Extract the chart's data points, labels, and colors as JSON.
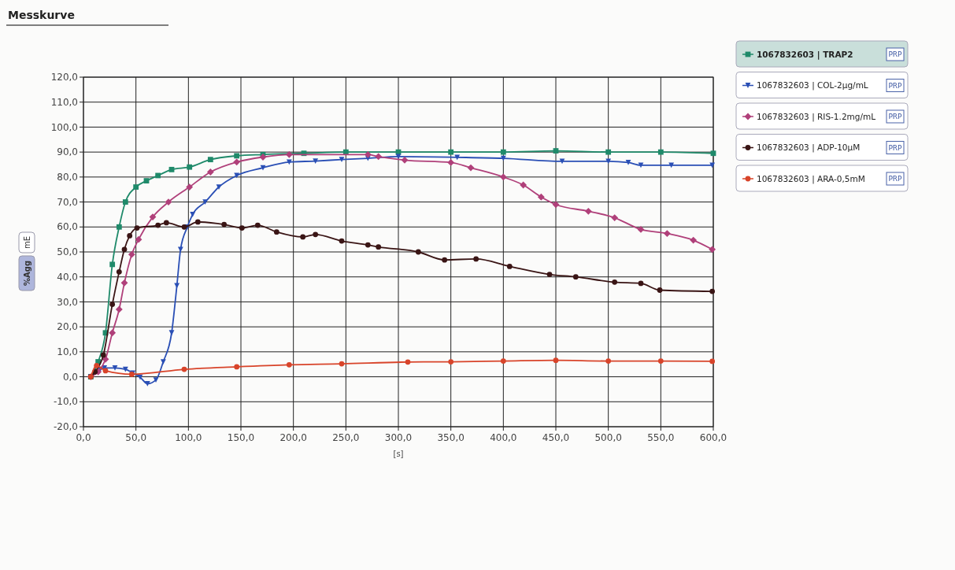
{
  "chart_data": {
    "type": "line",
    "title": "Messkurve",
    "xlabel": "[s]",
    "ylabel": "%Agg",
    "annotations": [
      "mE",
      "PRP",
      "PRP",
      "PRP",
      "PRP",
      "PRP"
    ],
    "xlim": [
      0,
      600
    ],
    "ylim": [
      -20,
      120
    ],
    "xticks": [
      {
        "value": 0,
        "label": "0,0"
      },
      {
        "value": 50,
        "label": "50,0"
      },
      {
        "value": 100,
        "label": "100,0"
      },
      {
        "value": 150,
        "label": "150,0"
      },
      {
        "value": 200,
        "label": "200,0"
      },
      {
        "value": 250,
        "label": "250,0"
      },
      {
        "value": 300,
        "label": "300,0"
      },
      {
        "value": 350,
        "label": "350,0"
      },
      {
        "value": 400,
        "label": "400,0"
      },
      {
        "value": 450,
        "label": "450,0"
      },
      {
        "value": 500,
        "label": "500,0"
      },
      {
        "value": 550,
        "label": "550,0"
      },
      {
        "value": 600,
        "label": "600,0"
      }
    ],
    "yticks": [
      {
        "value": -20,
        "label": "-20,0"
      },
      {
        "value": -10,
        "label": "-10,0"
      },
      {
        "value": 0,
        "label": "0,0"
      },
      {
        "value": 10,
        "label": "10,0"
      },
      {
        "value": 20,
        "label": "20,0"
      },
      {
        "value": 30,
        "label": "30,0"
      },
      {
        "value": 40,
        "label": "40,0"
      },
      {
        "value": 50,
        "label": "50,0"
      },
      {
        "value": 60,
        "label": "60,0"
      },
      {
        "value": 70,
        "label": "70,0"
      },
      {
        "value": 80,
        "label": "80,0"
      },
      {
        "value": 90,
        "label": "90,0"
      },
      {
        "value": 100,
        "label": "100,0"
      },
      {
        "value": 110,
        "label": "110,0"
      },
      {
        "value": 120,
        "label": "120,0"
      }
    ],
    "grid": true,
    "legend": "right",
    "line_style": "solid",
    "series": [
      {
        "name": "1067832603 | TRAP2",
        "color": "#1f8a6a",
        "marker": "square",
        "x": [
          7,
          14,
          21,
          27.5,
          34,
          40,
          50,
          60,
          71,
          84,
          101,
          121,
          146,
          171,
          210,
          250,
          300,
          350,
          400,
          450,
          500,
          550,
          600
        ],
        "values": [
          0,
          6,
          17.6,
          45,
          60,
          70,
          76,
          78.5,
          80.6,
          83,
          84,
          87,
          88.5,
          89,
          89.5,
          90,
          90,
          90,
          90,
          90.5,
          90,
          90,
          89.5
        ]
      },
      {
        "name": "1067832603 | COL-2µg/mL",
        "color": "#2a4fb5",
        "marker": "triangle",
        "x": [
          7,
          16,
          20,
          30,
          40,
          47,
          54,
          61,
          69,
          76,
          84,
          89,
          92.5,
          99,
          104,
          116,
          129,
          146,
          171,
          196,
          221,
          246,
          271,
          300,
          356,
          400,
          456,
          500,
          519,
          531,
          560,
          599
        ],
        "values": [
          0,
          3,
          3.5,
          3.5,
          3,
          1.5,
          -0.2,
          -2.8,
          -1.3,
          6,
          17.6,
          36.5,
          51,
          60,
          65,
          70,
          76,
          80.6,
          83.7,
          86,
          86.4,
          87,
          87.5,
          88.2,
          87.9,
          87.5,
          86.3,
          86.3,
          85.8,
          84.7,
          84.7,
          84.7
        ]
      },
      {
        "name": "1067832603 | RIS-1.2mg/mL",
        "color": "#b0407a",
        "marker": "diamond",
        "x": [
          7,
          14,
          21,
          27.5,
          34,
          39,
          46,
          52.5,
          66,
          81,
          101,
          121,
          146,
          171,
          196,
          271,
          281,
          306,
          350,
          369,
          400,
          419,
          436,
          450,
          481,
          506,
          531,
          556,
          581,
          599
        ],
        "values": [
          0,
          2,
          7,
          17.6,
          27,
          37.6,
          49,
          55,
          64,
          70,
          76,
          82,
          86,
          88,
          89,
          89,
          88.2,
          86.8,
          85.8,
          83.7,
          80,
          76.8,
          72,
          69,
          66.3,
          63.7,
          59,
          57.4,
          54.7,
          51
        ]
      },
      {
        "name": "1067832603 | ADP-10µM",
        "color": "#3a1515",
        "marker": "circle",
        "x": [
          7,
          11,
          19,
          27.5,
          34,
          39,
          44,
          51,
          71,
          79,
          96,
          109,
          134,
          151,
          166,
          184,
          209,
          221,
          246,
          271,
          281,
          319,
          344,
          374,
          406,
          444,
          469,
          506,
          531,
          549,
          599
        ],
        "values": [
          0,
          2,
          8.7,
          29,
          42,
          51,
          56.5,
          59.6,
          60.7,
          61.7,
          60,
          62,
          61,
          59.6,
          60.7,
          58,
          56,
          57,
          54.4,
          52.8,
          52,
          50,
          46.8,
          47.2,
          44.2,
          41,
          40,
          37.9,
          37.4,
          34.7,
          34.2
        ]
      },
      {
        "name": "1067832603 | ARA-0,5mM",
        "color": "#d8442a",
        "marker": "circle",
        "x": [
          7,
          12.5,
          21,
          46,
          96,
          146,
          196,
          246,
          309,
          350,
          400,
          450,
          500,
          550,
          599
        ],
        "values": [
          0,
          4.5,
          2.4,
          1,
          3,
          4,
          4.8,
          5.2,
          5.9,
          6,
          6.3,
          6.6,
          6.3,
          6.3,
          6.2
        ]
      }
    ]
  }
}
